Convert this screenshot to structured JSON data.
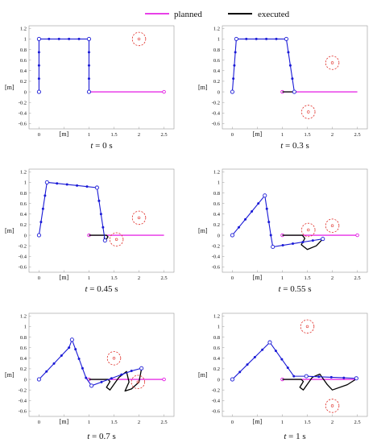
{
  "legend": {
    "items": [
      {
        "label": "planned",
        "color": "#e000e0"
      },
      {
        "label": "executed",
        "color": "#000000"
      }
    ]
  },
  "colors": {
    "arm": "#1a1ad6",
    "joint_open": "#1a1ad6",
    "obstacle": "#e0302a",
    "planned": "#e000e0",
    "executed": "#000000",
    "axis": "#999999"
  },
  "chart_data": [
    {
      "type": "line",
      "caption_t": "t",
      "caption_rest": " = 0 s",
      "xlabel": "[m]",
      "ylabel": "[m]",
      "xlim": [
        -0.2,
        2.7
      ],
      "ylim": [
        -0.7,
        1.25
      ],
      "x_ticks": [
        0,
        0.5,
        1,
        1.5,
        2,
        2.5
      ],
      "x_tick_labels": [
        "0",
        "",
        "1",
        "1.5",
        "2",
        "2.5"
      ],
      "y_ticks": [
        -0.6,
        -0.4,
        -0.2,
        0,
        0.2,
        0.4,
        0.6,
        0.8,
        1,
        1.2
      ],
      "y_tick_labels": [
        "-0.6",
        "-0.4",
        "-0.2",
        "0",
        "0.2",
        "0.4",
        "0.6",
        "0.8",
        "1",
        "1.2"
      ],
      "arm": [
        [
          0,
          0
        ],
        [
          0,
          0.25
        ],
        [
          0,
          0.5
        ],
        [
          0,
          0.75
        ],
        [
          0,
          1
        ],
        [
          0.2,
          1
        ],
        [
          0.4,
          1
        ],
        [
          0.6,
          1
        ],
        [
          0.8,
          1
        ],
        [
          1,
          1
        ],
        [
          1,
          0.75
        ],
        [
          1,
          0.5
        ],
        [
          1,
          0.25
        ],
        [
          1,
          0
        ]
      ],
      "open_joints": [
        0,
        4,
        9,
        13
      ],
      "planned": [
        [
          1,
          0
        ],
        [
          2.5,
          0
        ]
      ],
      "planned_end_open": true,
      "executed": [],
      "obstacles": [
        {
          "x": 2.0,
          "y": 1.0,
          "r": 0.13
        }
      ]
    },
    {
      "type": "line",
      "caption_t": "t",
      "caption_rest": " = 0.3 s",
      "xlabel": "[m]",
      "ylabel": "[m]",
      "xlim": [
        -0.2,
        2.7
      ],
      "ylim": [
        -0.7,
        1.25
      ],
      "x_ticks": [
        0,
        0.5,
        1,
        1.5,
        2,
        2.5
      ],
      "x_tick_labels": [
        "0",
        "",
        "1",
        "1.5",
        "2",
        "2.5"
      ],
      "y_ticks": [
        -0.6,
        -0.4,
        -0.2,
        0,
        0.2,
        0.4,
        0.6,
        0.8,
        1,
        1.2
      ],
      "y_tick_labels": [
        "-0.6",
        "-0.4",
        "-0.2",
        "0",
        "0.2",
        "0.4",
        "0.6",
        "0.8",
        "1",
        "1.2"
      ],
      "arm": [
        [
          0,
          0
        ],
        [
          0.02,
          0.25
        ],
        [
          0.04,
          0.5
        ],
        [
          0.06,
          0.75
        ],
        [
          0.08,
          1
        ],
        [
          0.28,
          1
        ],
        [
          0.48,
          1
        ],
        [
          0.68,
          1
        ],
        [
          0.88,
          1
        ],
        [
          1.08,
          1
        ],
        [
          1.12,
          0.75
        ],
        [
          1.16,
          0.5
        ],
        [
          1.2,
          0.25
        ],
        [
          1.24,
          0
        ]
      ],
      "open_joints": [
        0,
        4,
        9,
        13
      ],
      "planned": [
        [
          1,
          0
        ],
        [
          2.5,
          0
        ]
      ],
      "planned_end_open": false,
      "executed": [
        [
          1.0,
          0
        ],
        [
          1.24,
          0
        ]
      ],
      "obstacles": [
        {
          "x": 2.0,
          "y": 0.55,
          "r": 0.13
        },
        {
          "x": 1.52,
          "y": -0.38,
          "r": 0.13
        }
      ]
    },
    {
      "type": "line",
      "caption_t": "t",
      "caption_rest": " = 0.45 s",
      "xlabel": "[m]",
      "ylabel": "[m]",
      "xlim": [
        -0.2,
        2.7
      ],
      "ylim": [
        -0.7,
        1.25
      ],
      "x_ticks": [
        0,
        0.5,
        1,
        1.5,
        2,
        2.5
      ],
      "x_tick_labels": [
        "0",
        "",
        "1",
        "1.5",
        "2",
        "2.5"
      ],
      "y_ticks": [
        -0.6,
        -0.4,
        -0.2,
        0,
        0.2,
        0.4,
        0.6,
        0.8,
        1,
        1.2
      ],
      "y_tick_labels": [
        "-0.6",
        "-0.4",
        "-0.2",
        "0",
        "0.2",
        "0.4",
        "0.6",
        "0.8",
        "1",
        "1.2"
      ],
      "arm": [
        [
          0,
          0
        ],
        [
          0.04,
          0.25
        ],
        [
          0.08,
          0.5
        ],
        [
          0.12,
          0.75
        ],
        [
          0.16,
          1
        ],
        [
          0.36,
          0.98
        ],
        [
          0.56,
          0.96
        ],
        [
          0.76,
          0.94
        ],
        [
          0.96,
          0.92
        ],
        [
          1.16,
          0.9
        ],
        [
          1.2,
          0.65
        ],
        [
          1.24,
          0.4
        ],
        [
          1.28,
          0.15
        ],
        [
          1.32,
          -0.1
        ]
      ],
      "open_joints": [
        0,
        4,
        9,
        13
      ],
      "planned": [
        [
          1,
          0
        ],
        [
          2.5,
          0
        ]
      ],
      "planned_end_open": false,
      "executed": [
        [
          1.0,
          0
        ],
        [
          1.35,
          0
        ],
        [
          1.38,
          -0.03
        ],
        [
          1.33,
          -0.1
        ],
        [
          1.3,
          -0.04
        ]
      ],
      "obstacles": [
        {
          "x": 2.0,
          "y": 0.33,
          "r": 0.13
        },
        {
          "x": 1.55,
          "y": -0.08,
          "r": 0.13
        }
      ]
    },
    {
      "type": "line",
      "caption_t": "t",
      "caption_rest": " = 0.55 s",
      "xlabel": "[m]",
      "ylabel": "[m]",
      "xlim": [
        -0.2,
        2.7
      ],
      "ylim": [
        -0.7,
        1.25
      ],
      "x_ticks": [
        0,
        0.5,
        1,
        1.5,
        2,
        2.5
      ],
      "x_tick_labels": [
        "0",
        "",
        "1",
        "1.5",
        "2",
        "2.5"
      ],
      "y_ticks": [
        -0.6,
        -0.4,
        -0.2,
        0,
        0.2,
        0.4,
        0.6,
        0.8,
        1,
        1.2
      ],
      "y_tick_labels": [
        "-0.6",
        "-0.4",
        "-0.2",
        "0",
        "0.2",
        "0.4",
        "0.6",
        "0.8",
        "1",
        "1.2"
      ],
      "arm": [
        [
          0,
          0
        ],
        [
          0.13,
          0.15
        ],
        [
          0.26,
          0.3
        ],
        [
          0.39,
          0.45
        ],
        [
          0.52,
          0.6
        ],
        [
          0.65,
          0.75
        ],
        [
          0.69,
          0.5
        ],
        [
          0.73,
          0.25
        ],
        [
          0.77,
          0.0
        ],
        [
          0.81,
          -0.22
        ],
        [
          1.01,
          -0.19
        ],
        [
          1.21,
          -0.16
        ],
        [
          1.41,
          -0.13
        ],
        [
          1.61,
          -0.1
        ],
        [
          1.81,
          -0.07
        ]
      ],
      "open_joints": [
        0,
        5,
        9,
        14
      ],
      "planned": [
        [
          1,
          0
        ],
        [
          2.5,
          0
        ]
      ],
      "planned_end_open": true,
      "executed": [
        [
          1.0,
          0
        ],
        [
          1.4,
          0
        ],
        [
          1.45,
          -0.06
        ],
        [
          1.38,
          -0.18
        ],
        [
          1.5,
          -0.27
        ],
        [
          1.68,
          -0.2
        ],
        [
          1.8,
          -0.08
        ]
      ],
      "obstacles": [
        {
          "x": 1.52,
          "y": 0.1,
          "r": 0.13
        },
        {
          "x": 2.0,
          "y": 0.18,
          "r": 0.13
        }
      ]
    },
    {
      "type": "line",
      "caption_t": "t",
      "caption_rest": " = 0.7 s",
      "xlabel": "[m]",
      "ylabel": "[m]",
      "xlim": [
        -0.2,
        2.7
      ],
      "ylim": [
        -0.7,
        1.25
      ],
      "x_ticks": [
        0,
        0.5,
        1,
        1.5,
        2,
        2.5
      ],
      "x_tick_labels": [
        "0",
        "",
        "1",
        "1.5",
        "2",
        "2.5"
      ],
      "y_ticks": [
        -0.6,
        -0.4,
        -0.2,
        0,
        0.2,
        0.4,
        0.6,
        0.8,
        1,
        1.2
      ],
      "y_tick_labels": [
        "-0.6",
        "-0.4",
        "-0.2",
        "0",
        "0.2",
        "0.4",
        "0.6",
        "0.8",
        "1",
        "1.2"
      ],
      "arm": [
        [
          0,
          0
        ],
        [
          0.15,
          0.15
        ],
        [
          0.3,
          0.3
        ],
        [
          0.45,
          0.45
        ],
        [
          0.6,
          0.6
        ],
        [
          0.66,
          0.75
        ],
        [
          0.73,
          0.57
        ],
        [
          0.8,
          0.39
        ],
        [
          0.87,
          0.21
        ],
        [
          0.94,
          0.03
        ],
        [
          1.05,
          -0.12
        ],
        [
          1.25,
          -0.05
        ],
        [
          1.45,
          0.02
        ],
        [
          1.65,
          0.09
        ],
        [
          1.85,
          0.16
        ],
        [
          2.05,
          0.21
        ]
      ],
      "open_joints": [
        0,
        5,
        10,
        15
      ],
      "planned": [
        [
          1,
          0
        ],
        [
          2.5,
          0
        ]
      ],
      "planned_end_open": true,
      "executed": [
        [
          1.0,
          0
        ],
        [
          1.38,
          0
        ],
        [
          1.42,
          -0.04
        ],
        [
          1.35,
          -0.15
        ],
        [
          1.42,
          -0.2
        ],
        [
          1.6,
          0.04
        ],
        [
          1.75,
          0.15
        ],
        [
          1.8,
          -0.05
        ],
        [
          1.72,
          -0.22
        ],
        [
          1.85,
          -0.18
        ],
        [
          2.0,
          -0.05
        ],
        [
          2.05,
          0.2
        ]
      ],
      "obstacles": [
        {
          "x": 1.5,
          "y": 0.4,
          "r": 0.13
        },
        {
          "x": 1.98,
          "y": -0.05,
          "r": 0.13
        }
      ]
    },
    {
      "type": "line",
      "caption_t": "t",
      "caption_rest": " = 1 s",
      "xlabel": "[m]",
      "ylabel": "[m]",
      "xlim": [
        -0.2,
        2.7
      ],
      "ylim": [
        -0.7,
        1.25
      ],
      "x_ticks": [
        0,
        0.5,
        1,
        1.5,
        2,
        2.5
      ],
      "x_tick_labels": [
        "0",
        "",
        "1",
        "1.5",
        "2",
        "2.5"
      ],
      "y_ticks": [
        -0.6,
        -0.4,
        -0.2,
        0,
        0.2,
        0.4,
        0.6,
        0.8,
        1,
        1.2
      ],
      "y_tick_labels": [
        "-0.6",
        "-0.4",
        "-0.2",
        "0",
        "0.2",
        "0.4",
        "0.6",
        "0.8",
        "1",
        "1.2"
      ],
      "arm": [
        [
          0,
          0
        ],
        [
          0.15,
          0.14
        ],
        [
          0.3,
          0.28
        ],
        [
          0.45,
          0.42
        ],
        [
          0.6,
          0.56
        ],
        [
          0.75,
          0.7
        ],
        [
          0.87,
          0.54
        ],
        [
          0.99,
          0.38
        ],
        [
          1.11,
          0.22
        ],
        [
          1.23,
          0.06
        ],
        [
          1.48,
          0.06
        ],
        [
          1.73,
          0.05
        ],
        [
          1.98,
          0.04
        ],
        [
          2.23,
          0.03
        ],
        [
          2.48,
          0.02
        ]
      ],
      "open_joints": [
        0,
        5,
        10,
        14
      ],
      "planned": [
        [
          1,
          0
        ],
        [
          2.5,
          0
        ]
      ],
      "planned_end_open": false,
      "executed": [
        [
          1.0,
          0
        ],
        [
          1.38,
          0
        ],
        [
          1.42,
          -0.04
        ],
        [
          1.35,
          -0.15
        ],
        [
          1.42,
          -0.2
        ],
        [
          1.6,
          0.04
        ],
        [
          1.75,
          0.1
        ],
        [
          1.9,
          -0.1
        ],
        [
          2.0,
          -0.2
        ],
        [
          2.3,
          -0.1
        ],
        [
          2.5,
          0.02
        ]
      ],
      "obstacles": [
        {
          "x": 1.5,
          "y": 1.0,
          "r": 0.13
        },
        {
          "x": 2.0,
          "y": -0.5,
          "r": 0.13
        }
      ]
    }
  ]
}
